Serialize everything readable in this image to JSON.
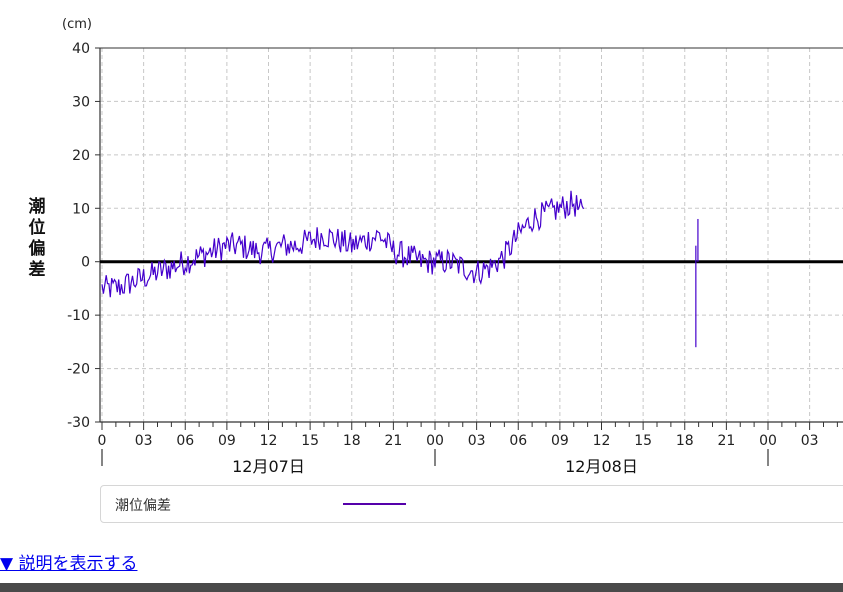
{
  "chart_data": {
    "type": "line",
    "y_unit": "(cm)",
    "ylabel": "潮位偏差",
    "ylim": [
      -30,
      40
    ],
    "yticks": [
      40,
      30,
      20,
      10,
      0,
      -10,
      -20,
      -30
    ],
    "ytick_labels": [
      "40",
      "30",
      "20",
      "10",
      "0",
      "-10",
      "-20",
      "-30"
    ],
    "x_tick_labels": [
      "0",
      "03",
      "06",
      "09",
      "12",
      "15",
      "18",
      "21",
      "00",
      "03",
      "06",
      "09",
      "12",
      "15",
      "18",
      "21",
      "00",
      "03",
      "0"
    ],
    "x_date_labels": [
      "12月07日",
      "12月08日"
    ],
    "grid": true,
    "zero_line": true,
    "x_hours_range": [
      0,
      54
    ],
    "series": [
      {
        "name": "潮位偏差",
        "color": "#4400cc",
        "x": [
          0,
          1,
          2,
          3,
          4,
          5,
          6,
          7,
          8,
          9,
          10,
          11,
          12,
          13,
          14,
          15,
          16,
          17,
          18,
          19,
          20,
          21,
          22,
          23,
          24,
          25,
          26,
          27,
          28,
          29,
          30,
          31,
          32,
          33,
          34,
          34.3,
          34.6,
          34.8
        ],
        "y": [
          -5,
          -5,
          -4,
          -3,
          -2,
          -1,
          0,
          1,
          2,
          3,
          3,
          2,
          2,
          3,
          3,
          4,
          5,
          4,
          3,
          4,
          5,
          2,
          1,
          0,
          0,
          0,
          -1,
          -2,
          -1,
          1,
          5,
          8,
          9,
          10,
          11,
          10,
          9,
          8
        ],
        "noise": 2.5
      }
    ],
    "spike": {
      "x": 42.8,
      "y_top": 3,
      "y_bottom": -16,
      "x2": 42.95,
      "y_top2": 8
    }
  },
  "legend": {
    "label": "潮位偏差",
    "color": "#5500aa"
  },
  "toggle_link": "▼ 説明を表示する"
}
